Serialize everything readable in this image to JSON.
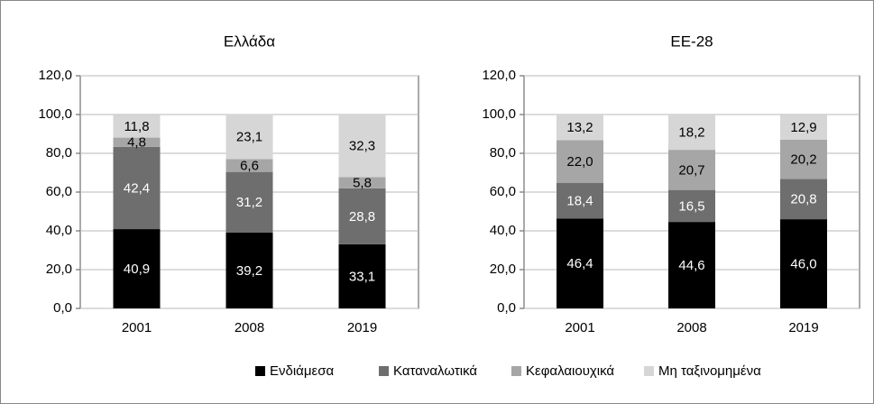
{
  "chart_data": [
    {
      "type": "stacked_bar",
      "title": "Ελλάδα",
      "categories": [
        "2001",
        "2008",
        "2019"
      ],
      "series": [
        {
          "name": "Ενδιάμεσα",
          "color": "#000000",
          "values": [
            40.9,
            39.2,
            33.1
          ],
          "value_labels": [
            "40,9",
            "39,2",
            "33,1"
          ]
        },
        {
          "name": "Καταναλωτικά",
          "color": "#6e6e6e",
          "values": [
            42.4,
            31.2,
            28.8
          ],
          "value_labels": [
            "42,4",
            "31,2",
            "28,8"
          ]
        },
        {
          "name": "Κεφαλαιουχικά",
          "color": "#a6a6a6",
          "values": [
            4.8,
            6.6,
            5.8
          ],
          "value_labels": [
            "4,8",
            "6,6",
            "5,8"
          ]
        },
        {
          "name": "Μη ταξινομημένα",
          "color": "#d6d6d6",
          "values": [
            11.8,
            23.1,
            32.3
          ],
          "value_labels": [
            "11,8",
            "23,1",
            "32,3"
          ]
        }
      ],
      "ylim": [
        0,
        120
      ],
      "yticks": [
        {
          "value": 0,
          "label": "0,0"
        },
        {
          "value": 20,
          "label": "20,0"
        },
        {
          "value": 40,
          "label": "40,0"
        },
        {
          "value": 60,
          "label": "60,0"
        },
        {
          "value": 80,
          "label": "80,0"
        },
        {
          "value": 100,
          "label": "100,0"
        },
        {
          "value": 120,
          "label": "120,0"
        }
      ],
      "grid": true,
      "legend": "bottom"
    },
    {
      "type": "stacked_bar",
      "title": "ΕΕ-28",
      "categories": [
        "2001",
        "2008",
        "2019"
      ],
      "series": [
        {
          "color": "#000000",
          "values": [
            46.4,
            44.6,
            46.0
          ],
          "value_labels": [
            "46,4",
            "44,6",
            "46,0"
          ]
        },
        {
          "color": "#6e6e6e",
          "values": [
            18.4,
            16.5,
            20.8
          ],
          "value_labels": [
            "18,4",
            "16,5",
            "20,8"
          ]
        },
        {
          "color": "#a6a6a6",
          "values": [
            22.0,
            20.7,
            20.2
          ],
          "value_labels": [
            "22,0",
            "20,7",
            "20,2"
          ]
        },
        {
          "color": "#d6d6d6",
          "values": [
            13.2,
            18.2,
            12.9
          ],
          "value_labels": [
            "13,2",
            "18,2",
            "12,9"
          ]
        }
      ],
      "ylim": [
        0,
        120
      ],
      "yticks": [
        {
          "value": 0,
          "label": "0,0"
        },
        {
          "value": 20,
          "label": "20,0"
        },
        {
          "value": 40,
          "label": "40,0"
        },
        {
          "value": 60,
          "label": "60,0"
        },
        {
          "value": 80,
          "label": "80,0"
        },
        {
          "value": 100,
          "label": "100,0"
        },
        {
          "value": 120,
          "label": "120,0"
        }
      ],
      "grid": true
    }
  ]
}
